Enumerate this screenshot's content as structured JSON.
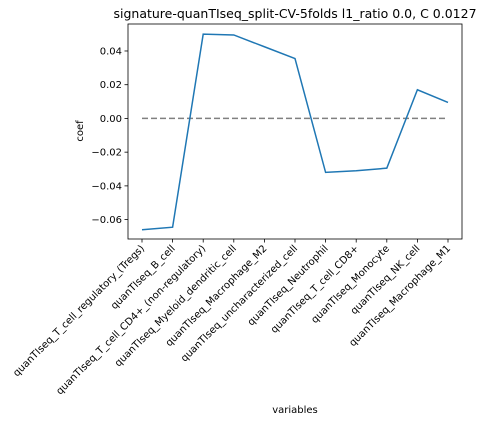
{
  "chart_data": {
    "type": "line",
    "title": "signature-quanTIseq_split-CV-5folds l1_ratio 0.0, C 0.0127",
    "xlabel": "variables",
    "ylabel": "coef",
    "ylim": [
      -0.0715,
      0.056
    ],
    "yticks": [
      -0.06,
      -0.04,
      -0.02,
      0.0,
      0.02,
      0.04
    ],
    "ytick_labels": [
      "−0.06",
      "−0.04",
      "−0.02",
      "0.00",
      "0.02",
      "0.04"
    ],
    "categories": [
      "quanTIseq_T_cell_regulatory_(Tregs)",
      "quanTIseq_B_cell",
      "quanTIseq_T_cell_CD4+_(non-regulatory)",
      "quanTIseq_Myeloid_dendritic_cell",
      "quanTIseq_Macrophage_M2",
      "quanTIseq_uncharacterized_cell",
      "quanTIseq_Neutrophil",
      "quanTIseq_T_cell_CD8+",
      "quanTIseq_Monocyte",
      "quanTIseq_NK_cell",
      "quanTIseq_Macrophage_M1"
    ],
    "values": [
      -0.066,
      -0.0645,
      0.05,
      0.0495,
      0.0425,
      0.0355,
      -0.032,
      -0.031,
      -0.0295,
      0.017,
      0.0095
    ],
    "reference_line": {
      "y": 0.0,
      "style": "dashed",
      "color": "#808080"
    },
    "series_color": "#1f77b4",
    "grid": false,
    "legend": "none"
  }
}
